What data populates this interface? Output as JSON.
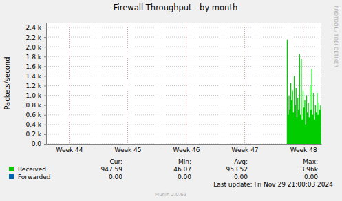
{
  "chart_data": {
    "type": "area",
    "title": "Firewall Throughput - by month",
    "y_label": "Packets/second",
    "watermark": "RRDTOOL / TOBI OETIKER",
    "footer": "Last update: Fri Nov 29 21:00:03 2024",
    "version": "Munin 2.0.69",
    "grid": true,
    "xlim": [
      44.106,
      48.81
    ],
    "xticks": [
      {
        "value": 44.5,
        "label": "Week 44"
      },
      {
        "value": 45.5,
        "label": "Week 45"
      },
      {
        "value": 46.5,
        "label": "Week 46"
      },
      {
        "value": 47.5,
        "label": "Week 47"
      },
      {
        "value": 48.5,
        "label": "Week 48"
      }
    ],
    "ylim": [
      0,
      2500
    ],
    "yticks": [
      {
        "value": 0,
        "label": "0.0"
      },
      {
        "value": 200,
        "label": "0.2 k"
      },
      {
        "value": 400,
        "label": "0.4 k"
      },
      {
        "value": 600,
        "label": "0.6 k"
      },
      {
        "value": 800,
        "label": "0.8 k"
      },
      {
        "value": 1000,
        "label": "1.0 k"
      },
      {
        "value": 1200,
        "label": "1.2 k"
      },
      {
        "value": 1400,
        "label": "1.4 k"
      },
      {
        "value": 1600,
        "label": "1.6 k"
      },
      {
        "value": 1800,
        "label": "1.8 k"
      },
      {
        "value": 2000,
        "label": "2.0 k"
      },
      {
        "value": 2200,
        "label": "2.2 k"
      },
      {
        "value": 2400,
        "label": "2.4 k"
      }
    ],
    "x": [
      48.22,
      48.235,
      48.25,
      48.265,
      48.28,
      48.295,
      48.31,
      48.325,
      48.34,
      48.355,
      48.37,
      48.385,
      48.4,
      48.415,
      48.43,
      48.445,
      48.46,
      48.475,
      48.49,
      48.505,
      48.52,
      48.535,
      48.55,
      48.565,
      48.58,
      48.595,
      48.61,
      48.625,
      48.64,
      48.655,
      48.67,
      48.685,
      48.7,
      48.715,
      48.73,
      48.745,
      48.76,
      48.775,
      48.79,
      48.805
    ],
    "stats_headers": [
      "Cur:",
      "Min:",
      "Avg:",
      "Max:"
    ],
    "series": [
      {
        "name": "Received",
        "color": "#00CC00",
        "values": [
          2150,
          600,
          1000,
          700,
          1250,
          900,
          1100,
          650,
          1400,
          800,
          1150,
          550,
          950,
          700,
          1850,
          600,
          1750,
          500,
          1100,
          750,
          900,
          400,
          1000,
          650,
          850,
          550,
          1200,
          700,
          1550,
          600,
          1050,
          500,
          800,
          650,
          1050,
          600,
          850,
          700,
          800,
          650
        ],
        "stats": [
          947.59,
          46.07,
          953.52,
          {
            "value": 3960,
            "label": "3.96k"
          }
        ]
      },
      {
        "name": "Forwarded",
        "color": "#0066B3",
        "values": [
          0,
          0,
          0,
          0,
          0,
          0,
          0,
          0,
          0,
          0,
          0,
          0,
          0,
          0,
          0,
          0,
          0,
          0,
          0,
          0,
          0,
          0,
          0,
          0,
          0,
          0,
          0,
          0,
          0,
          0,
          0,
          0,
          0,
          0,
          0,
          0,
          0,
          0,
          0,
          0
        ],
        "stats": [
          {
            "value": 0,
            "label": "0.00"
          },
          {
            "value": 0,
            "label": "0.00"
          },
          {
            "value": 0,
            "label": "0.00"
          },
          {
            "value": 0,
            "label": "0.00"
          }
        ]
      }
    ]
  }
}
